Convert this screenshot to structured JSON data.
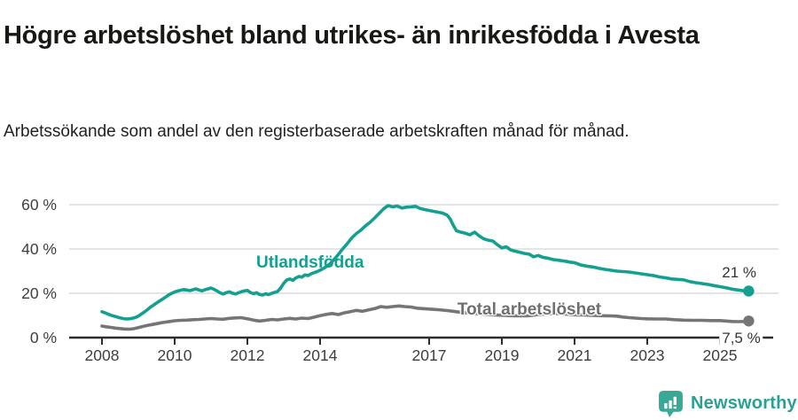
{
  "header": {
    "title": "Högre arbetslöshet bland utrikes- än inrikesfödda i Avesta",
    "subtitle": "Arbetssökande som andel av den registerbaserade arbetskraften månad för månad."
  },
  "footer": {
    "brand": "Newsworthy"
  },
  "colors": {
    "teal": "#14a091",
    "gray": "#757575",
    "grid": "#dcdcdc",
    "axis": "#2d2d2d",
    "tick_label": "#3e3e3e",
    "value_label": "#35332f",
    "logo_bubble": "#38a897",
    "logo_bars": "#ffffff",
    "logo_text": "#2ba094"
  },
  "chart_data": {
    "type": "line",
    "title": "Högre arbetslöshet bland utrikes- än inrikesfödda i Avesta",
    "subtitle": "Arbetssökande som andel av den registerbaserade arbetskraften månad för månad.",
    "unit": "%",
    "grid": true,
    "legend_position": "inline-labels",
    "x_axis": {
      "ticks": [
        2008,
        2010,
        2012,
        2014,
        2017,
        2019,
        2021,
        2023,
        2025
      ],
      "labels": [
        "2008",
        "2010",
        "2012",
        "2014",
        "2017",
        "2019",
        "2021",
        "2023",
        "2025"
      ],
      "range_years": [
        2007.1,
        2026.5
      ]
    },
    "y_axis": {
      "ticks": [
        0,
        20,
        40,
        60
      ],
      "labels": [
        "0 %",
        "20 %",
        "40 %",
        "60 %"
      ],
      "ylim": [
        0,
        65
      ]
    },
    "series": [
      {
        "name": "Utlandsfödda",
        "color_key": "teal",
        "end_label": "21 %",
        "end_value": 21,
        "points": [
          [
            2008.0,
            11.7
          ],
          [
            2008.08,
            11.2
          ],
          [
            2008.17,
            10.6
          ],
          [
            2008.25,
            10.1
          ],
          [
            2008.33,
            9.7
          ],
          [
            2008.42,
            9.3
          ],
          [
            2008.5,
            8.9
          ],
          [
            2008.58,
            8.6
          ],
          [
            2008.67,
            8.4
          ],
          [
            2008.75,
            8.5
          ],
          [
            2008.83,
            8.7
          ],
          [
            2008.92,
            9.1
          ],
          [
            2009.0,
            9.7
          ],
          [
            2009.08,
            10.6
          ],
          [
            2009.17,
            11.6
          ],
          [
            2009.25,
            12.6
          ],
          [
            2009.33,
            13.7
          ],
          [
            2009.42,
            14.7
          ],
          [
            2009.5,
            15.6
          ],
          [
            2009.58,
            16.5
          ],
          [
            2009.67,
            17.4
          ],
          [
            2009.75,
            18.3
          ],
          [
            2009.83,
            19.2
          ],
          [
            2009.92,
            20.0
          ],
          [
            2010.0,
            20.6
          ],
          [
            2010.08,
            21.0
          ],
          [
            2010.17,
            21.4
          ],
          [
            2010.25,
            21.7
          ],
          [
            2010.33,
            21.5
          ],
          [
            2010.42,
            21.2
          ],
          [
            2010.5,
            21.6
          ],
          [
            2010.58,
            22.0
          ],
          [
            2010.67,
            21.5
          ],
          [
            2010.75,
            21.1
          ],
          [
            2010.83,
            21.6
          ],
          [
            2010.92,
            22.0
          ],
          [
            2011.0,
            22.4
          ],
          [
            2011.08,
            21.8
          ],
          [
            2011.17,
            21.0
          ],
          [
            2011.25,
            20.2
          ],
          [
            2011.33,
            19.7
          ],
          [
            2011.42,
            20.3
          ],
          [
            2011.5,
            20.7
          ],
          [
            2011.58,
            20.1
          ],
          [
            2011.67,
            19.7
          ],
          [
            2011.75,
            20.2
          ],
          [
            2011.83,
            20.7
          ],
          [
            2011.92,
            21.1
          ],
          [
            2012.0,
            21.3
          ],
          [
            2012.08,
            20.4
          ],
          [
            2012.17,
            19.8
          ],
          [
            2012.25,
            20.3
          ],
          [
            2012.33,
            19.5
          ],
          [
            2012.42,
            19.2
          ],
          [
            2012.5,
            19.8
          ],
          [
            2012.58,
            19.4
          ],
          [
            2012.67,
            20.0
          ],
          [
            2012.75,
            20.4
          ],
          [
            2012.83,
            20.8
          ],
          [
            2012.92,
            22.5
          ],
          [
            2013.0,
            24.5
          ],
          [
            2013.08,
            26.0
          ],
          [
            2013.17,
            26.5
          ],
          [
            2013.25,
            25.8
          ],
          [
            2013.33,
            26.9
          ],
          [
            2013.42,
            27.6
          ],
          [
            2013.5,
            27.3
          ],
          [
            2013.58,
            28.3
          ],
          [
            2013.67,
            28.0
          ],
          [
            2013.75,
            28.8
          ],
          [
            2013.83,
            29.3
          ],
          [
            2013.92,
            29.8
          ],
          [
            2014.0,
            30.4
          ],
          [
            2014.12,
            31.5
          ],
          [
            2014.25,
            33.0
          ],
          [
            2014.37,
            35.0
          ],
          [
            2014.5,
            37.5
          ],
          [
            2014.62,
            40.0
          ],
          [
            2014.75,
            42.5
          ],
          [
            2014.87,
            45.0
          ],
          [
            2015.0,
            47.0
          ],
          [
            2015.12,
            48.5
          ],
          [
            2015.25,
            50.5
          ],
          [
            2015.37,
            52.0
          ],
          [
            2015.5,
            54.0
          ],
          [
            2015.62,
            56.0
          ],
          [
            2015.75,
            58.2
          ],
          [
            2015.87,
            59.6
          ],
          [
            2016.0,
            59.0
          ],
          [
            2016.12,
            59.4
          ],
          [
            2016.25,
            58.5
          ],
          [
            2016.37,
            58.9
          ],
          [
            2016.5,
            59.0
          ],
          [
            2016.62,
            59.3
          ],
          [
            2016.75,
            58.3
          ],
          [
            2016.87,
            57.8
          ],
          [
            2017.0,
            57.4
          ],
          [
            2017.12,
            57.0
          ],
          [
            2017.25,
            56.6
          ],
          [
            2017.37,
            56.2
          ],
          [
            2017.5,
            55.2
          ],
          [
            2017.58,
            53.5
          ],
          [
            2017.67,
            50.5
          ],
          [
            2017.75,
            48.2
          ],
          [
            2017.87,
            47.6
          ],
          [
            2018.0,
            47.1
          ],
          [
            2018.12,
            46.4
          ],
          [
            2018.25,
            47.6
          ],
          [
            2018.37,
            46.0
          ],
          [
            2018.5,
            44.6
          ],
          [
            2018.62,
            44.0
          ],
          [
            2018.75,
            43.6
          ],
          [
            2018.87,
            42.0
          ],
          [
            2019.0,
            40.5
          ],
          [
            2019.12,
            41.0
          ],
          [
            2019.25,
            39.5
          ],
          [
            2019.37,
            39.0
          ],
          [
            2019.5,
            38.5
          ],
          [
            2019.62,
            38.0
          ],
          [
            2019.75,
            37.7
          ],
          [
            2019.87,
            36.5
          ],
          [
            2020.0,
            37.1
          ],
          [
            2020.12,
            36.3
          ],
          [
            2020.25,
            35.9
          ],
          [
            2020.42,
            35.2
          ],
          [
            2020.58,
            34.9
          ],
          [
            2020.75,
            34.5
          ],
          [
            2020.87,
            34.1
          ],
          [
            2021.0,
            33.8
          ],
          [
            2021.17,
            32.8
          ],
          [
            2021.33,
            32.3
          ],
          [
            2021.5,
            31.9
          ],
          [
            2021.67,
            31.3
          ],
          [
            2021.83,
            30.8
          ],
          [
            2022.0,
            30.4
          ],
          [
            2022.17,
            30.0
          ],
          [
            2022.33,
            29.8
          ],
          [
            2022.5,
            29.6
          ],
          [
            2022.67,
            29.2
          ],
          [
            2022.83,
            28.8
          ],
          [
            2023.0,
            28.4
          ],
          [
            2023.17,
            28.0
          ],
          [
            2023.33,
            27.4
          ],
          [
            2023.5,
            27.0
          ],
          [
            2023.67,
            26.5
          ],
          [
            2023.83,
            26.3
          ],
          [
            2024.0,
            26.1
          ],
          [
            2024.17,
            25.3
          ],
          [
            2024.33,
            24.8
          ],
          [
            2024.5,
            24.4
          ],
          [
            2024.67,
            24.0
          ],
          [
            2024.83,
            23.5
          ],
          [
            2025.0,
            23.0
          ],
          [
            2025.17,
            22.5
          ],
          [
            2025.33,
            21.9
          ],
          [
            2025.5,
            21.5
          ],
          [
            2025.67,
            21.1
          ],
          [
            2025.79,
            21.0
          ]
        ]
      },
      {
        "name": "Total arbetslöshet",
        "color_key": "gray",
        "end_label": "7,5 %",
        "end_value": 7.5,
        "points": [
          [
            2008.0,
            5.2
          ],
          [
            2008.12,
            4.9
          ],
          [
            2008.25,
            4.6
          ],
          [
            2008.37,
            4.3
          ],
          [
            2008.5,
            4.1
          ],
          [
            2008.62,
            3.9
          ],
          [
            2008.75,
            3.8
          ],
          [
            2008.87,
            4.0
          ],
          [
            2009.0,
            4.5
          ],
          [
            2009.12,
            5.0
          ],
          [
            2009.25,
            5.5
          ],
          [
            2009.37,
            5.9
          ],
          [
            2009.5,
            6.3
          ],
          [
            2009.62,
            6.7
          ],
          [
            2009.75,
            7.0
          ],
          [
            2009.87,
            7.3
          ],
          [
            2010.0,
            7.6
          ],
          [
            2010.17,
            7.8
          ],
          [
            2010.33,
            7.9
          ],
          [
            2010.5,
            8.1
          ],
          [
            2010.67,
            8.2
          ],
          [
            2010.83,
            8.4
          ],
          [
            2011.0,
            8.6
          ],
          [
            2011.17,
            8.4
          ],
          [
            2011.33,
            8.3
          ],
          [
            2011.5,
            8.7
          ],
          [
            2011.67,
            8.9
          ],
          [
            2011.83,
            9.0
          ],
          [
            2012.0,
            8.5
          ],
          [
            2012.17,
            7.9
          ],
          [
            2012.33,
            7.5
          ],
          [
            2012.5,
            7.8
          ],
          [
            2012.67,
            8.2
          ],
          [
            2012.83,
            8.0
          ],
          [
            2013.0,
            8.4
          ],
          [
            2013.17,
            8.7
          ],
          [
            2013.33,
            8.4
          ],
          [
            2013.5,
            8.8
          ],
          [
            2013.67,
            8.6
          ],
          [
            2013.83,
            9.2
          ],
          [
            2014.0,
            9.9
          ],
          [
            2014.17,
            10.5
          ],
          [
            2014.33,
            10.9
          ],
          [
            2014.5,
            10.4
          ],
          [
            2014.67,
            11.2
          ],
          [
            2014.83,
            11.7
          ],
          [
            2015.0,
            12.3
          ],
          [
            2015.17,
            11.9
          ],
          [
            2015.33,
            12.5
          ],
          [
            2015.5,
            13.1
          ],
          [
            2015.67,
            14.0
          ],
          [
            2015.83,
            13.7
          ],
          [
            2016.0,
            14.0
          ],
          [
            2016.17,
            14.3
          ],
          [
            2016.33,
            14.0
          ],
          [
            2016.5,
            13.8
          ],
          [
            2016.67,
            13.3
          ],
          [
            2016.83,
            13.1
          ],
          [
            2017.0,
            12.9
          ],
          [
            2017.25,
            12.6
          ],
          [
            2017.5,
            12.2
          ],
          [
            2017.75,
            11.7
          ],
          [
            2018.0,
            11.2
          ],
          [
            2018.25,
            10.9
          ],
          [
            2018.5,
            10.6
          ],
          [
            2018.75,
            10.3
          ],
          [
            2019.0,
            10.1
          ],
          [
            2019.25,
            9.9
          ],
          [
            2019.5,
            9.8
          ],
          [
            2019.75,
            9.9
          ],
          [
            2020.0,
            10.4
          ],
          [
            2020.25,
            10.7
          ],
          [
            2020.5,
            10.8
          ],
          [
            2020.75,
            10.6
          ],
          [
            2021.0,
            10.3
          ],
          [
            2021.25,
            10.2
          ],
          [
            2021.5,
            10.0
          ],
          [
            2021.75,
            9.9
          ],
          [
            2022.0,
            9.8
          ],
          [
            2022.17,
            9.7
          ],
          [
            2022.33,
            9.3
          ],
          [
            2022.5,
            9.0
          ],
          [
            2022.67,
            8.8
          ],
          [
            2022.83,
            8.6
          ],
          [
            2023.0,
            8.5
          ],
          [
            2023.25,
            8.4
          ],
          [
            2023.5,
            8.4
          ],
          [
            2023.75,
            8.1
          ],
          [
            2024.0,
            7.9
          ],
          [
            2024.25,
            7.8
          ],
          [
            2024.5,
            7.8
          ],
          [
            2024.75,
            7.7
          ],
          [
            2025.0,
            7.7
          ],
          [
            2025.17,
            7.5
          ],
          [
            2025.33,
            7.3
          ],
          [
            2025.5,
            7.2
          ],
          [
            2025.67,
            7.3
          ],
          [
            2025.79,
            7.5
          ]
        ]
      }
    ]
  }
}
